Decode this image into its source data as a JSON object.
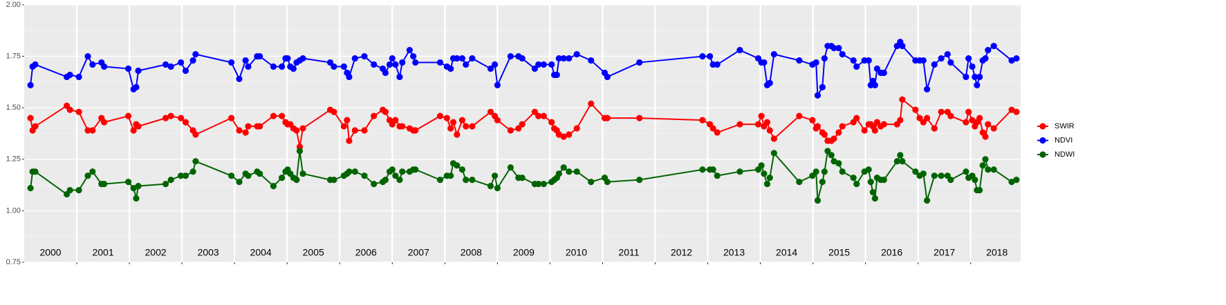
{
  "chart_data": {
    "type": "line",
    "x": [
      2000.12,
      2000.16,
      2000.21,
      2000.81,
      2000.87,
      2001.04,
      2001.21,
      2001.3,
      2001.47,
      2001.52,
      2001.98,
      2002.08,
      2002.13,
      2002.17,
      2002.69,
      2002.79,
      2002.98,
      2003.07,
      2003.21,
      2003.26,
      2003.94,
      2004.09,
      2004.21,
      2004.26,
      2004.43,
      2004.48,
      2004.74,
      2004.9,
      2004.97,
      2005.01,
      2005.06,
      2005.12,
      2005.18,
      2005.24,
      2005.3,
      2005.82,
      2005.89,
      2006.08,
      2006.14,
      2006.18,
      2006.29,
      2006.47,
      2006.65,
      2006.82,
      2006.87,
      2006.95,
      2007.0,
      2007.06,
      2007.14,
      2007.19,
      2007.33,
      2007.4,
      2007.44,
      2007.91,
      2008.04,
      2008.11,
      2008.16,
      2008.23,
      2008.33,
      2008.4,
      2008.52,
      2008.87,
      2008.95,
      2009.0,
      2009.25,
      2009.4,
      2009.47,
      2009.71,
      2009.78,
      2009.88,
      2010.03,
      2010.08,
      2010.13,
      2010.17,
      2010.26,
      2010.36,
      2010.51,
      2010.78,
      2011.04,
      2011.09,
      2011.7,
      2012.9,
      2013.04,
      2013.1,
      2013.18,
      2013.61,
      2013.96,
      2014.02,
      2014.07,
      2014.13,
      2014.18,
      2014.26,
      2014.74,
      2014.99,
      2015.06,
      2015.09,
      2015.18,
      2015.22,
      2015.28,
      2015.35,
      2015.4,
      2015.49,
      2015.56,
      2015.77,
      2015.83,
      2015.98,
      2016.06,
      2016.1,
      2016.14,
      2016.18,
      2016.22,
      2016.29,
      2016.35,
      2016.6,
      2016.66,
      2016.7,
      2016.95,
      2017.03,
      2017.1,
      2017.17,
      2017.31,
      2017.44,
      2017.56,
      2017.62,
      2017.91,
      2017.96,
      2018.03,
      2018.08,
      2018.12,
      2018.17,
      2018.23,
      2018.28,
      2018.33,
      2018.44,
      2018.78,
      2018.87
    ],
    "series": [
      {
        "name": "SWIR",
        "color": "#ff0000",
        "values": [
          1.45,
          1.39,
          1.41,
          1.51,
          1.49,
          1.48,
          1.39,
          1.39,
          1.45,
          1.43,
          1.46,
          1.39,
          1.42,
          1.41,
          1.45,
          1.46,
          1.45,
          1.43,
          1.39,
          1.37,
          1.45,
          1.39,
          1.38,
          1.41,
          1.41,
          1.41,
          1.46,
          1.46,
          1.43,
          1.42,
          1.42,
          1.4,
          1.39,
          1.31,
          1.4,
          1.49,
          1.48,
          1.41,
          1.44,
          1.34,
          1.39,
          1.39,
          1.46,
          1.49,
          1.48,
          1.44,
          1.42,
          1.44,
          1.41,
          1.41,
          1.4,
          1.39,
          1.39,
          1.46,
          1.45,
          1.4,
          1.43,
          1.37,
          1.44,
          1.41,
          1.41,
          1.48,
          1.46,
          1.44,
          1.39,
          1.4,
          1.42,
          1.48,
          1.46,
          1.46,
          1.43,
          1.4,
          1.39,
          1.37,
          1.36,
          1.37,
          1.4,
          1.52,
          1.45,
          1.45,
          1.45,
          1.44,
          1.42,
          1.4,
          1.38,
          1.42,
          1.42,
          1.46,
          1.41,
          1.43,
          1.39,
          1.35,
          1.46,
          1.44,
          1.4,
          1.41,
          1.38,
          1.37,
          1.34,
          1.34,
          1.35,
          1.38,
          1.41,
          1.43,
          1.45,
          1.39,
          1.42,
          1.42,
          1.41,
          1.39,
          1.43,
          1.41,
          1.42,
          1.42,
          1.44,
          1.54,
          1.49,
          1.45,
          1.43,
          1.45,
          1.4,
          1.48,
          1.48,
          1.46,
          1.43,
          1.48,
          1.44,
          1.41,
          1.43,
          1.45,
          1.38,
          1.36,
          1.42,
          1.4,
          1.49,
          1.48
        ]
      },
      {
        "name": "NDVI",
        "color": "#0000ff",
        "values": [
          1.61,
          1.7,
          1.71,
          1.65,
          1.66,
          1.65,
          1.75,
          1.71,
          1.72,
          1.7,
          1.69,
          1.59,
          1.6,
          1.68,
          1.71,
          1.7,
          1.72,
          1.68,
          1.73,
          1.76,
          1.72,
          1.64,
          1.73,
          1.7,
          1.75,
          1.75,
          1.7,
          1.7,
          1.74,
          1.74,
          1.7,
          1.69,
          1.72,
          1.73,
          1.74,
          1.72,
          1.7,
          1.7,
          1.67,
          1.65,
          1.74,
          1.75,
          1.71,
          1.69,
          1.67,
          1.71,
          1.74,
          1.71,
          1.65,
          1.72,
          1.78,
          1.75,
          1.72,
          1.72,
          1.7,
          1.69,
          1.74,
          1.74,
          1.74,
          1.71,
          1.74,
          1.69,
          1.71,
          1.61,
          1.75,
          1.75,
          1.74,
          1.69,
          1.71,
          1.71,
          1.71,
          1.66,
          1.66,
          1.74,
          1.74,
          1.74,
          1.76,
          1.73,
          1.67,
          1.65,
          1.72,
          1.75,
          1.75,
          1.71,
          1.71,
          1.78,
          1.74,
          1.72,
          1.72,
          1.61,
          1.62,
          1.76,
          1.73,
          1.71,
          1.72,
          1.56,
          1.6,
          1.74,
          1.8,
          1.8,
          1.79,
          1.79,
          1.76,
          1.73,
          1.7,
          1.73,
          1.73,
          1.61,
          1.63,
          1.61,
          1.69,
          1.67,
          1.67,
          1.8,
          1.82,
          1.8,
          1.73,
          1.73,
          1.73,
          1.59,
          1.71,
          1.74,
          1.76,
          1.72,
          1.65,
          1.74,
          1.7,
          1.65,
          1.61,
          1.65,
          1.73,
          1.74,
          1.78,
          1.8,
          1.73,
          1.74
        ]
      },
      {
        "name": "NDWI",
        "color": "#006400",
        "values": [
          1.11,
          1.19,
          1.19,
          1.08,
          1.1,
          1.1,
          1.17,
          1.19,
          1.13,
          1.13,
          1.14,
          1.11,
          1.06,
          1.12,
          1.13,
          1.15,
          1.17,
          1.17,
          1.19,
          1.24,
          1.17,
          1.14,
          1.18,
          1.17,
          1.19,
          1.18,
          1.12,
          1.16,
          1.19,
          1.2,
          1.18,
          1.16,
          1.15,
          1.29,
          1.18,
          1.15,
          1.15,
          1.17,
          1.18,
          1.19,
          1.19,
          1.17,
          1.13,
          1.14,
          1.15,
          1.19,
          1.2,
          1.17,
          1.15,
          1.19,
          1.19,
          1.2,
          1.2,
          1.15,
          1.17,
          1.17,
          1.23,
          1.22,
          1.2,
          1.15,
          1.15,
          1.12,
          1.17,
          1.11,
          1.21,
          1.16,
          1.16,
          1.13,
          1.13,
          1.13,
          1.14,
          1.15,
          1.16,
          1.18,
          1.21,
          1.19,
          1.19,
          1.14,
          1.16,
          1.14,
          1.15,
          1.2,
          1.2,
          1.2,
          1.17,
          1.19,
          1.2,
          1.22,
          1.18,
          1.13,
          1.16,
          1.28,
          1.14,
          1.17,
          1.19,
          1.05,
          1.14,
          1.19,
          1.29,
          1.27,
          1.24,
          1.23,
          1.19,
          1.16,
          1.13,
          1.19,
          1.2,
          1.14,
          1.09,
          1.06,
          1.16,
          1.15,
          1.15,
          1.24,
          1.27,
          1.24,
          1.19,
          1.17,
          1.18,
          1.05,
          1.17,
          1.17,
          1.17,
          1.15,
          1.19,
          1.16,
          1.17,
          1.15,
          1.1,
          1.1,
          1.22,
          1.25,
          1.2,
          1.2,
          1.14,
          1.15
        ]
      }
    ],
    "annotations": [
      {
        "text": "2000",
        "x": 2000.5
      },
      {
        "text": "2001",
        "x": 2001.5
      },
      {
        "text": "2002",
        "x": 2002.5
      },
      {
        "text": "2003",
        "x": 2003.5
      },
      {
        "text": "2004",
        "x": 2004.5
      },
      {
        "text": "2005",
        "x": 2005.5
      },
      {
        "text": "2006",
        "x": 2006.5
      },
      {
        "text": "2007",
        "x": 2007.5
      },
      {
        "text": "2008",
        "x": 2008.5
      },
      {
        "text": "2009",
        "x": 2009.5
      },
      {
        "text": "2010",
        "x": 2010.5
      },
      {
        "text": "2011",
        "x": 2011.5
      },
      {
        "text": "2012",
        "x": 2012.5
      },
      {
        "text": "2013",
        "x": 2013.5
      },
      {
        "text": "2014",
        "x": 2014.5
      },
      {
        "text": "2015",
        "x": 2015.5
      },
      {
        "text": "2016",
        "x": 2016.5
      },
      {
        "text": "2017",
        "x": 2017.5
      },
      {
        "text": "2018",
        "x": 2018.5
      }
    ],
    "xlim": [
      2000,
      2018.95
    ],
    "xticks": [
      2001,
      2002,
      2003,
      2004,
      2005,
      2006,
      2007,
      2008,
      2009,
      2010,
      2011,
      2012,
      2013,
      2014,
      2015,
      2016,
      2017,
      2018
    ],
    "ylim": [
      0.75,
      2.0
    ],
    "yticks": [
      0.75,
      {
        "value": 1.0,
        "label": "1.00"
      },
      1.25,
      {
        "value": 1.5,
        "label": "1.50"
      },
      1.75,
      {
        "value": 2.0,
        "label": "2.00"
      }
    ],
    "grid": true,
    "legend": "right"
  }
}
